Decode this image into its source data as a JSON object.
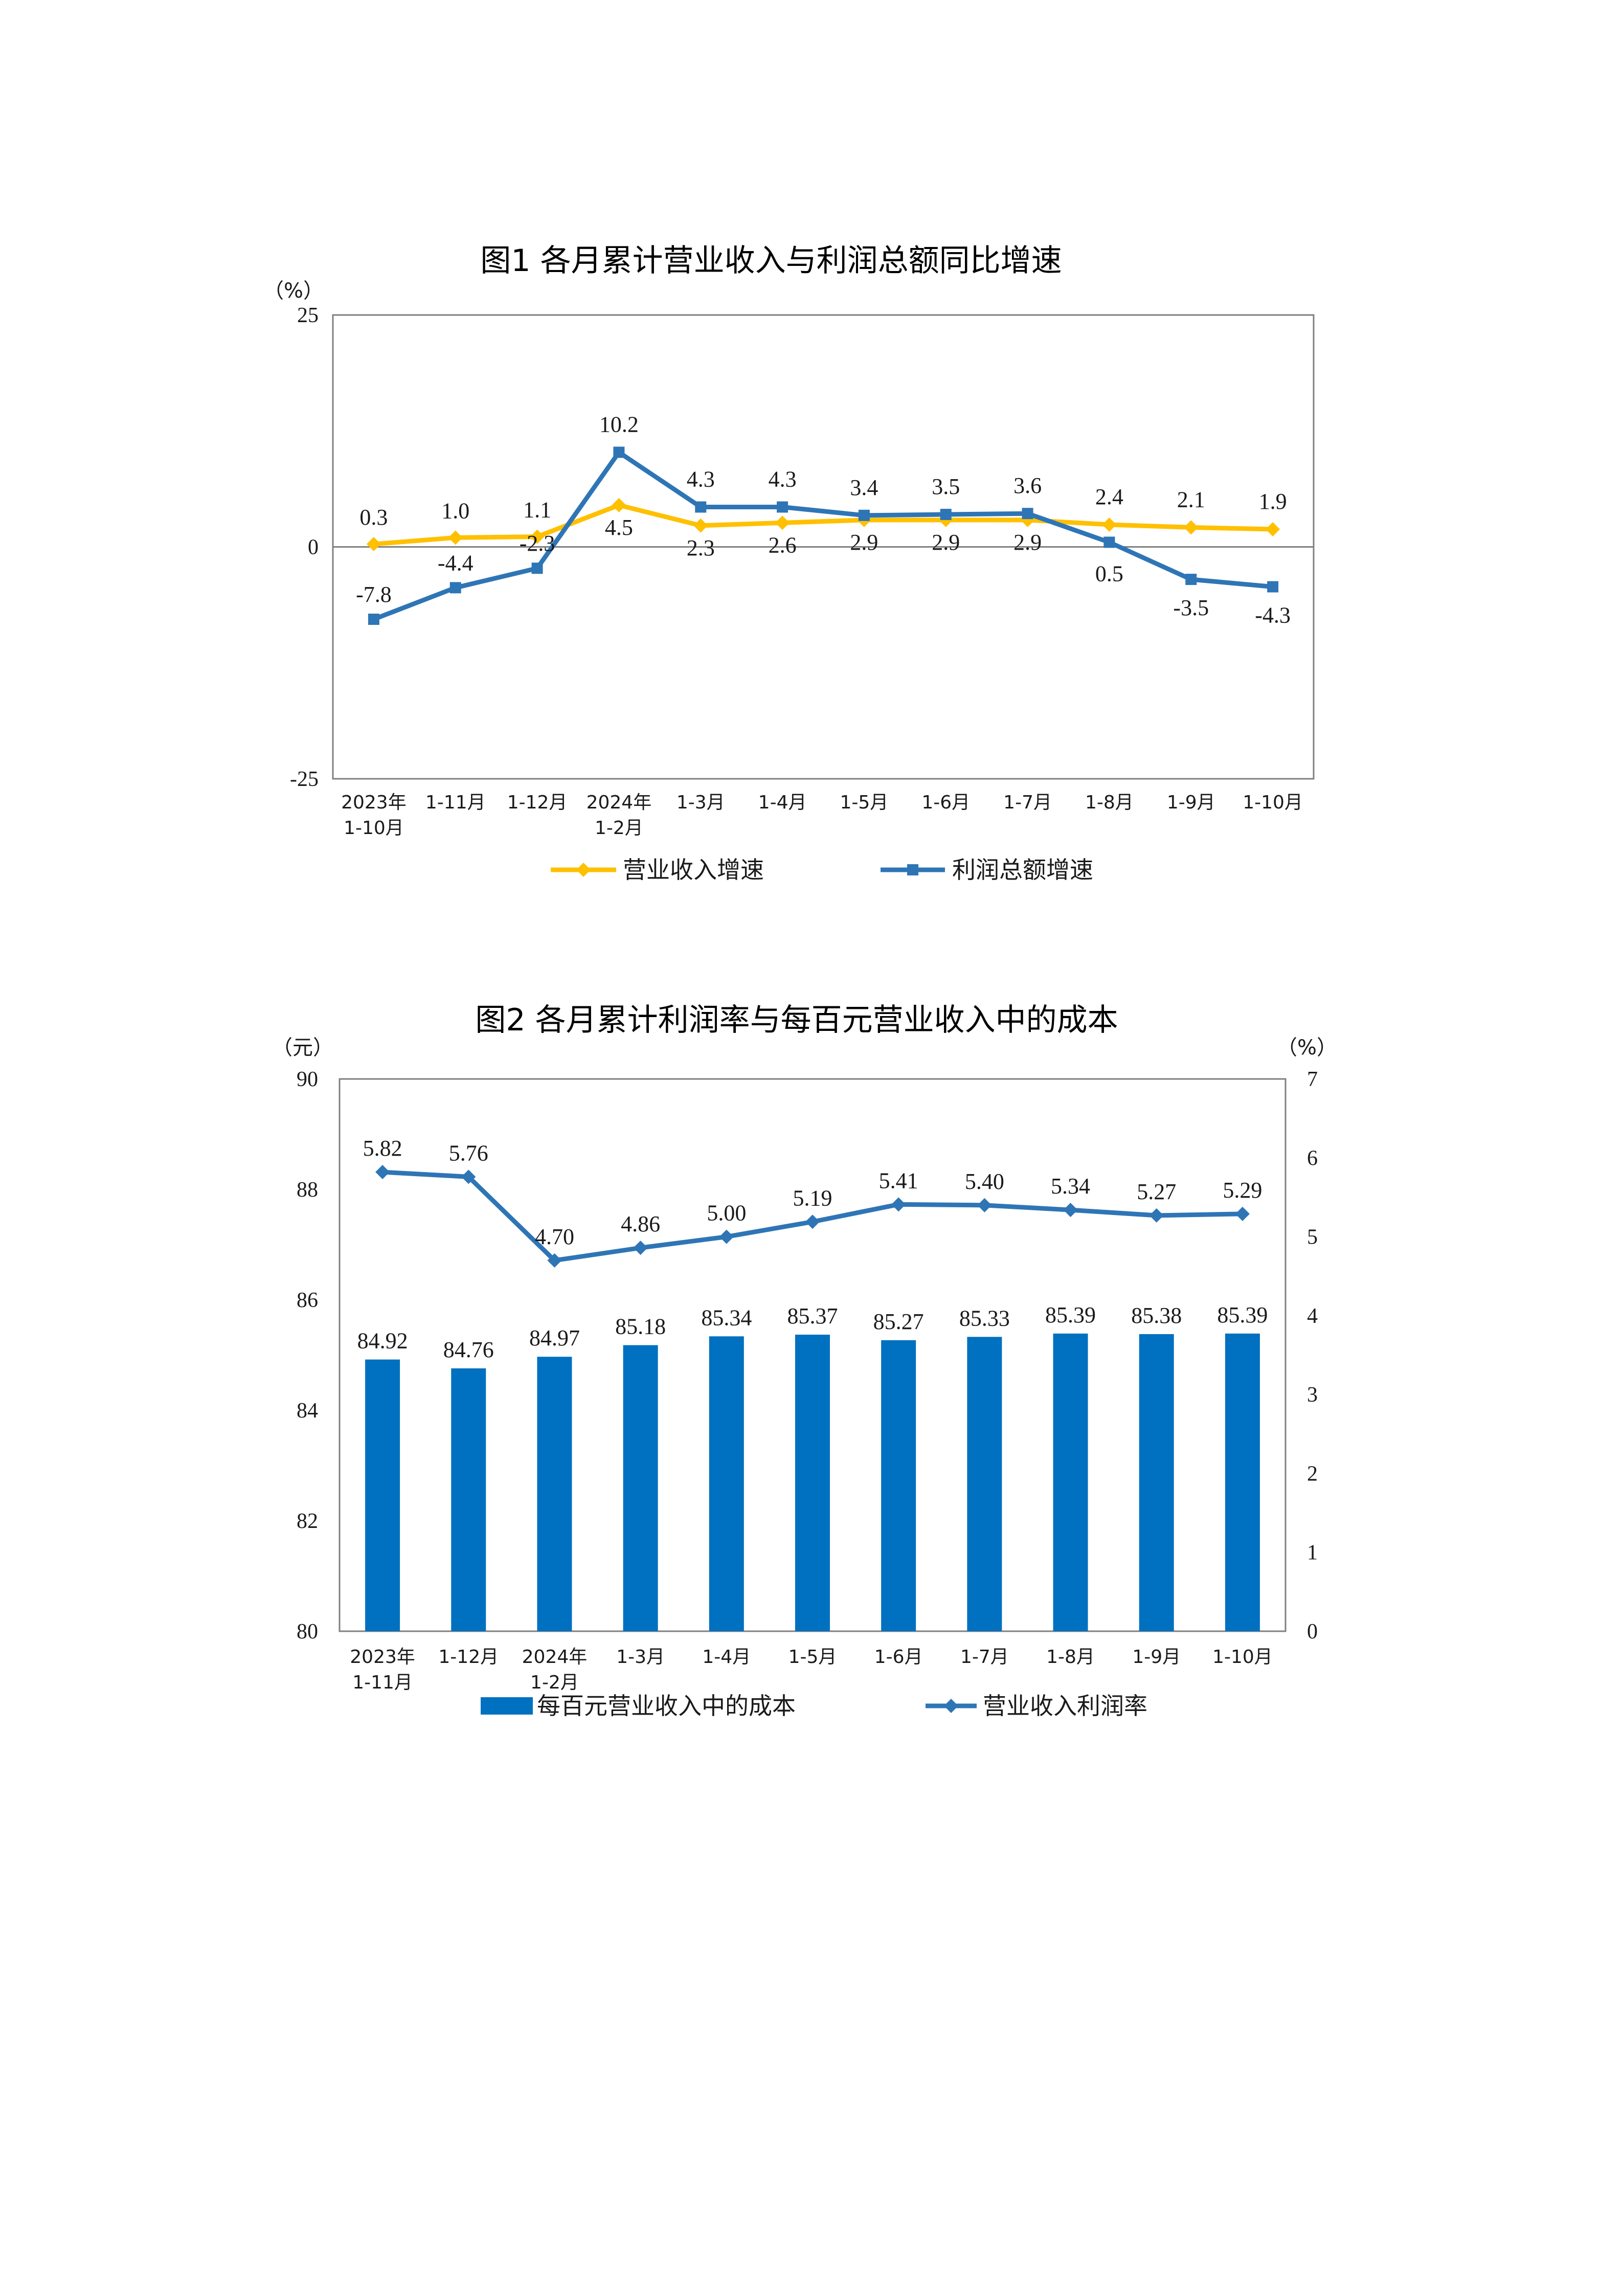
{
  "colors": {
    "revenue": "#FFC000",
    "profit": "#2E75B6",
    "bar": "#0070C0",
    "axis": "#808080",
    "text": "#1a1a1a"
  },
  "chart_data": [
    {
      "type": "line",
      "title": "图1  各月累计营业收入与利润总额同比增速",
      "unit_label": "（%）",
      "categories": [
        [
          "2023年",
          "1-10月"
        ],
        [
          "1-11月"
        ],
        [
          "1-12月"
        ],
        [
          "2024年",
          "1-2月"
        ],
        [
          "1-3月"
        ],
        [
          "1-4月"
        ],
        [
          "1-5月"
        ],
        [
          "1-6月"
        ],
        [
          "1-7月"
        ],
        [
          "1-8月"
        ],
        [
          "1-9月"
        ],
        [
          "1-10月"
        ]
      ],
      "ylim": [
        -25,
        25
      ],
      "yticks": [
        25,
        0,
        -25
      ],
      "grid": false,
      "legend_position": "bottom",
      "series": [
        {
          "name": "营业收入增速",
          "color": "#FFC000",
          "marker": "diamond",
          "values": [
            0.3,
            1.0,
            1.1,
            4.5,
            2.3,
            2.6,
            2.9,
            2.9,
            2.9,
            2.4,
            2.1,
            1.9
          ],
          "labels": [
            "0.3",
            "1.0",
            "1.1",
            "4.5",
            "2.3",
            "2.6",
            "2.9",
            "2.9",
            "2.9",
            "2.4",
            "2.1",
            "1.9"
          ]
        },
        {
          "name": "利润总额增速",
          "color": "#2E75B6",
          "marker": "square",
          "values": [
            -7.8,
            -4.4,
            -2.3,
            10.2,
            4.3,
            4.3,
            3.4,
            3.5,
            3.6,
            0.5,
            -3.5,
            -4.3
          ],
          "labels": [
            "-7.8",
            "-4.4",
            "-2.3",
            "10.2",
            "4.3",
            "4.3",
            "3.4",
            "3.5",
            "3.6",
            "0.5",
            "-3.5",
            "-4.3"
          ]
        }
      ]
    },
    {
      "type": "bar",
      "title": "图2  各月累计利润率与每百元营业收入中的成本",
      "left_unit_label": "（元）",
      "right_unit_label": "（%）",
      "categories": [
        [
          "2023年",
          "1-11月"
        ],
        [
          "1-12月"
        ],
        [
          "2024年",
          "1-2月"
        ],
        [
          "1-3月"
        ],
        [
          "1-4月"
        ],
        [
          "1-5月"
        ],
        [
          "1-6月"
        ],
        [
          "1-7月"
        ],
        [
          "1-8月"
        ],
        [
          "1-9月"
        ],
        [
          "1-10月"
        ]
      ],
      "ylim_left": [
        80,
        90
      ],
      "yticks_left": [
        90,
        88,
        86,
        84,
        82,
        80
      ],
      "ylim_right": [
        0,
        7
      ],
      "yticks_right": [
        7,
        6,
        5,
        4,
        3,
        2,
        1,
        0
      ],
      "grid": false,
      "legend_position": "bottom",
      "series": [
        {
          "name": "每百元营业收入中的成本",
          "type": "bar",
          "axis": "left",
          "color": "#0070C0",
          "values": [
            84.92,
            84.76,
            84.97,
            85.18,
            85.34,
            85.37,
            85.27,
            85.33,
            85.39,
            85.38,
            85.39
          ],
          "labels": [
            "84.92",
            "84.76",
            "84.97",
            "85.18",
            "85.34",
            "85.37",
            "85.27",
            "85.33",
            "85.39",
            "85.38",
            "85.39"
          ]
        },
        {
          "name": "营业收入利润率",
          "type": "line",
          "axis": "right",
          "color": "#2E75B6",
          "marker": "diamond",
          "values": [
            5.82,
            5.76,
            4.7,
            4.86,
            5.0,
            5.19,
            5.41,
            5.4,
            5.34,
            5.27,
            5.29
          ],
          "labels": [
            "5.82",
            "5.76",
            "4.70",
            "4.86",
            "5.00",
            "5.19",
            "5.41",
            "5.40",
            "5.34",
            "5.27",
            "5.29"
          ]
        }
      ]
    }
  ]
}
